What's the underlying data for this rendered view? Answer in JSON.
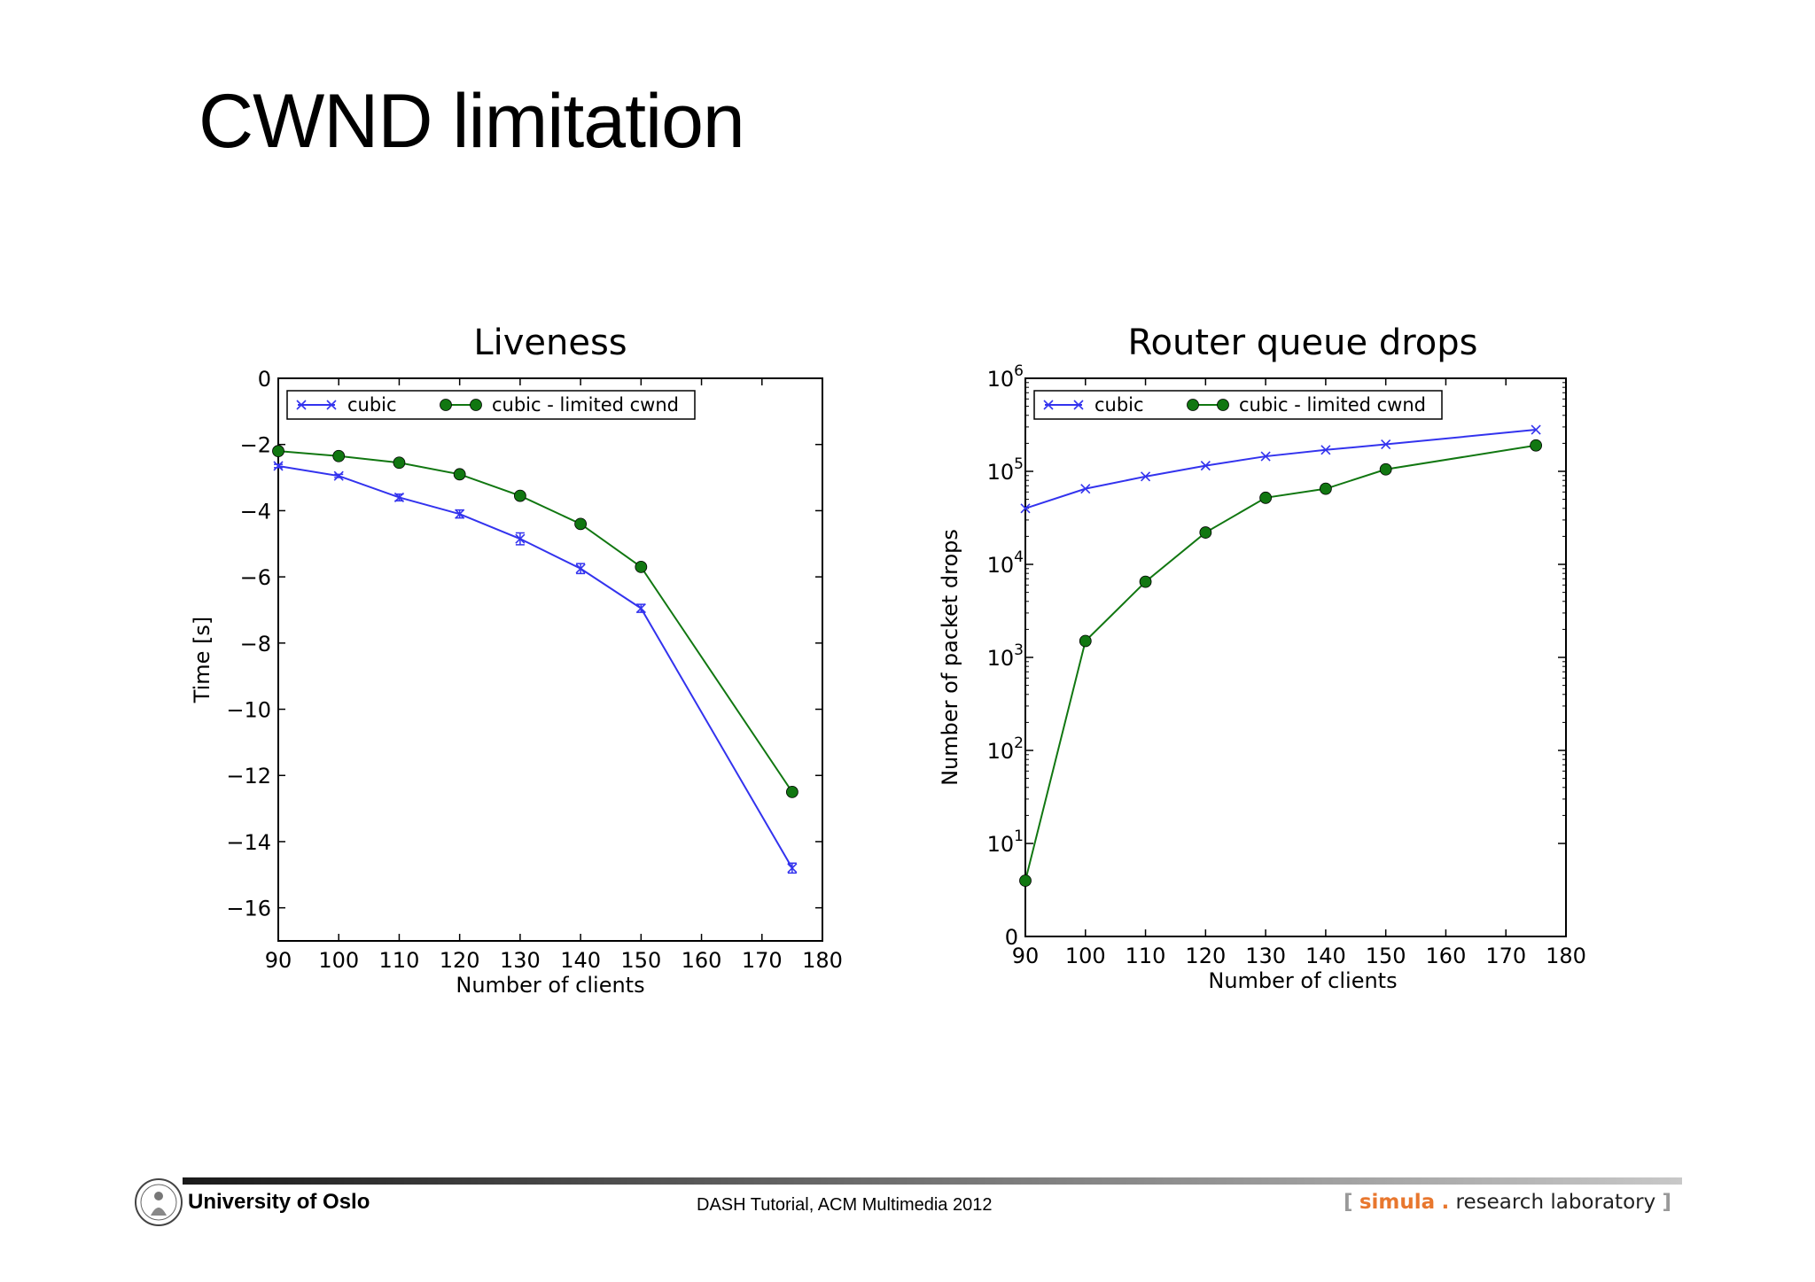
{
  "slide": {
    "title": "CWND limitation",
    "footer_university": "University of Oslo",
    "footer_center": "DASH Tutorial, ACM Multimedia 2012",
    "footer_brand": {
      "open": "[",
      "name": "simula",
      "dot": ".",
      "rest": "research laboratory",
      "close": "]"
    }
  },
  "chart_data": [
    {
      "type": "line",
      "title": "Liveness",
      "xlabel": "Number of clients",
      "ylabel": "Time [s]",
      "xlim": [
        90,
        180
      ],
      "ylim": [
        -17,
        0
      ],
      "xticks": [
        90,
        100,
        110,
        120,
        130,
        140,
        150,
        160,
        170,
        180
      ],
      "yticks": [
        0,
        -2,
        -4,
        -6,
        -8,
        -10,
        -12,
        -14,
        -16
      ],
      "ytick_labels": [
        "0",
        "−2",
        "−4",
        "−6",
        "−8",
        "−10",
        "−12",
        "−14",
        "−16"
      ],
      "legend_position": "top-left",
      "series": [
        {
          "name": "cubic",
          "color": "#3333ee",
          "marker": "x",
          "x": [
            90,
            100,
            110,
            120,
            130,
            140,
            150,
            175
          ],
          "y": [
            -2.65,
            -2.95,
            -3.6,
            -4.1,
            -4.85,
            -5.75,
            -6.95,
            -14.8
          ],
          "err": [
            0.05,
            0.05,
            0.1,
            0.12,
            0.18,
            0.15,
            0.12,
            0.15
          ]
        },
        {
          "name": "cubic - limited cwnd",
          "color": "#117711",
          "marker": "o",
          "x": [
            90,
            100,
            110,
            120,
            130,
            140,
            150,
            175
          ],
          "y": [
            -2.2,
            -2.35,
            -2.55,
            -2.9,
            -3.55,
            -4.4,
            -5.7,
            -12.5
          ]
        }
      ]
    },
    {
      "type": "line",
      "title": "Router queue drops",
      "xlabel": "Number of clients",
      "ylabel": "Number of packet drops",
      "yscale": "symlog",
      "xlim": [
        90,
        180
      ],
      "ylim_log10": [
        0,
        6
      ],
      "xticks": [
        90,
        100,
        110,
        120,
        130,
        140,
        150,
        160,
        170,
        180
      ],
      "yticks": [
        "0",
        "10^1",
        "10^2",
        "10^3",
        "10^4",
        "10^5",
        "10^6"
      ],
      "legend_position": "top-left",
      "series": [
        {
          "name": "cubic",
          "color": "#3333ee",
          "marker": "x",
          "x": [
            90,
            100,
            110,
            120,
            130,
            140,
            150,
            175
          ],
          "y": [
            40000,
            65000,
            88000,
            115000,
            145000,
            170000,
            195000,
            280000
          ]
        },
        {
          "name": "cubic - limited cwnd",
          "color": "#117711",
          "marker": "o",
          "x": [
            90,
            100,
            110,
            120,
            130,
            140,
            150,
            175
          ],
          "y": [
            6,
            1500,
            6500,
            22000,
            52000,
            65000,
            105000,
            190000
          ]
        }
      ]
    }
  ]
}
